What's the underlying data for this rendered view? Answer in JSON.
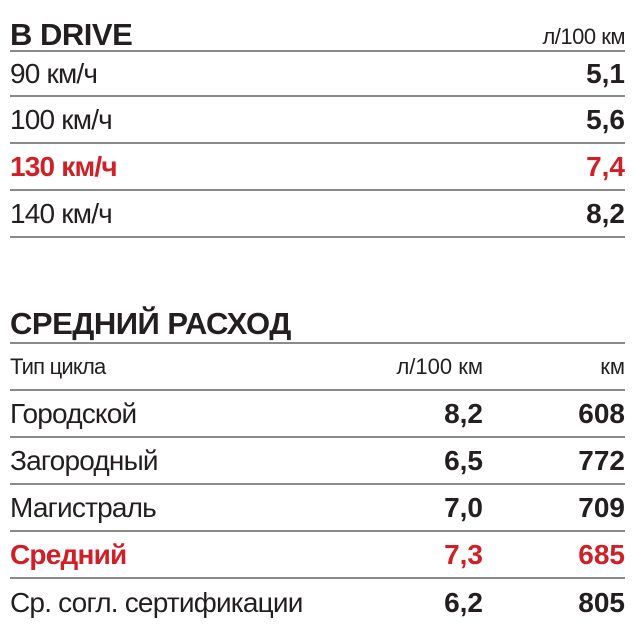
{
  "drive": {
    "title": "B DRIVE",
    "unit": "л/100 км",
    "rows": [
      {
        "label": "90 км/ч",
        "value": "5,1"
      },
      {
        "label": "100 км/ч",
        "value": "5,6"
      },
      {
        "label": "130 км/ч",
        "value": "7,4"
      },
      {
        "label": "140 км/ч",
        "value": "8,2"
      }
    ]
  },
  "average": {
    "title": "СРЕДНИЙ РАСХОД",
    "headers": [
      "Тип цикла",
      "л/100 км",
      "км"
    ],
    "rows": [
      {
        "label": "Городской",
        "consumption": "8,2",
        "range": "608"
      },
      {
        "label": "Загородный",
        "consumption": "6,5",
        "range": "772"
      },
      {
        "label": "Магистраль",
        "consumption": "7,0",
        "range": "709"
      },
      {
        "label": "Средний",
        "consumption": "7,3",
        "range": "685"
      },
      {
        "label": "Ср. согл. сертификации",
        "consumption": "6,2",
        "range": "805"
      }
    ]
  },
  "colors": {
    "highlight": "#d01f26",
    "text": "#231f20",
    "rule": "#8a8a8a"
  }
}
